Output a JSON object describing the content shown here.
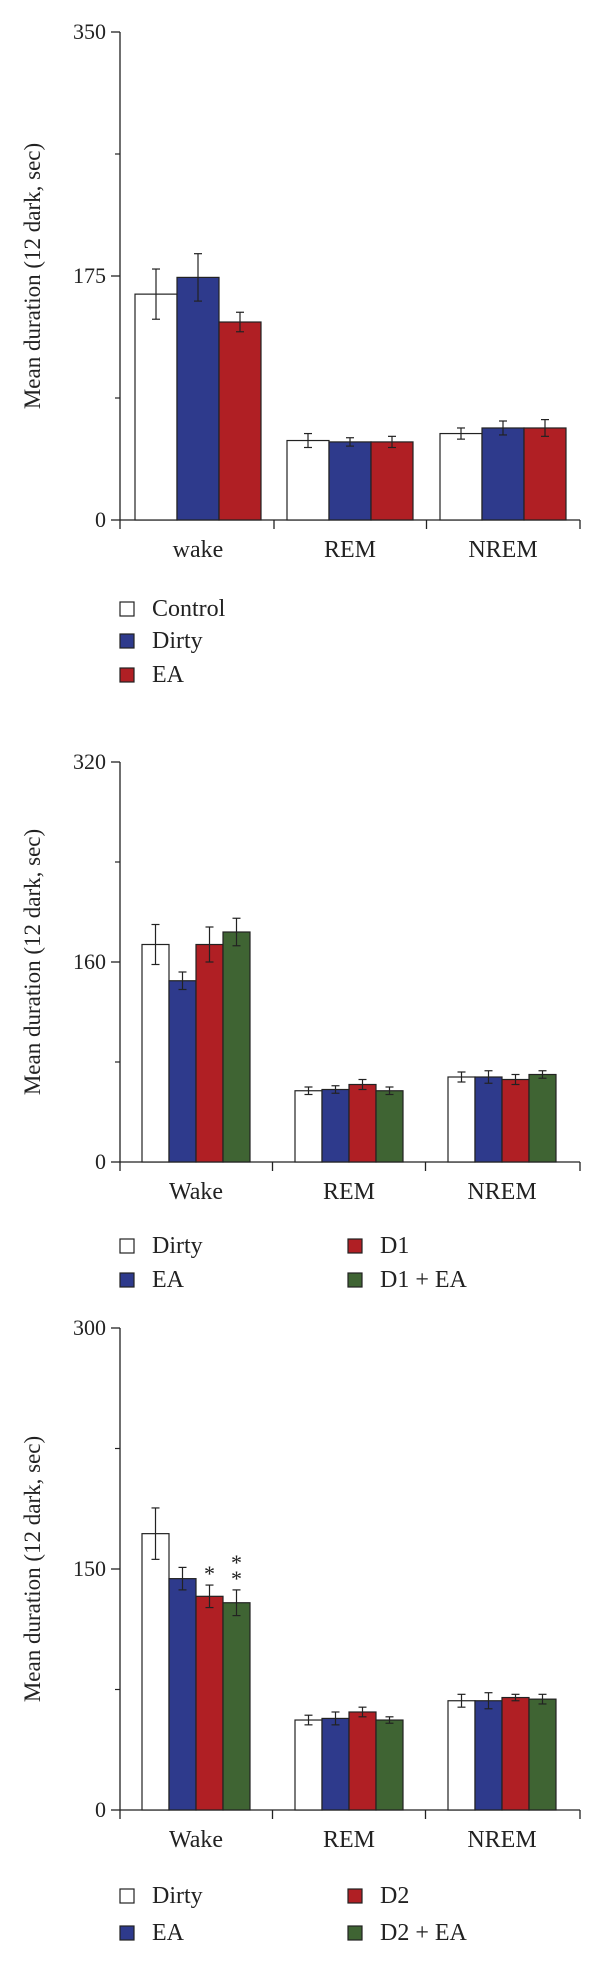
{
  "chart_data": [
    {
      "type": "bar",
      "title": "",
      "ylabel": "Mean duration (12 dark, sec)",
      "xlabel": "",
      "ylim": [
        0,
        350
      ],
      "yticks": [
        "0",
        "175",
        "350"
      ],
      "categories": [
        "wake",
        "REM",
        "NREM"
      ],
      "series": [
        {
          "name": "Control",
          "values": [
            162,
            57,
            62
          ],
          "errors": [
            18,
            5,
            4
          ]
        },
        {
          "name": "Dirty",
          "values": [
            174,
            56,
            66
          ],
          "errors": [
            17,
            3,
            5
          ]
        },
        {
          "name": "EA",
          "values": [
            142,
            56,
            66
          ],
          "errors": [
            7,
            4,
            6
          ]
        }
      ],
      "annotations": [],
      "colors": [
        "#ffffff",
        "#2e3a8c",
        "#b01f24"
      ],
      "legend_position": "bottom-left",
      "grid": false
    },
    {
      "type": "bar",
      "title": "",
      "ylabel": "Mean duration (12 dark, sec)",
      "xlabel": "",
      "ylim": [
        0,
        320
      ],
      "yticks": [
        "0",
        "160",
        "320"
      ],
      "categories": [
        "Wake",
        "REM",
        "NREM"
      ],
      "series": [
        {
          "name": "Dirty",
          "values": [
            174,
            57,
            68
          ],
          "errors": [
            16,
            3,
            4
          ]
        },
        {
          "name": "EA",
          "values": [
            145,
            58,
            68
          ],
          "errors": [
            7,
            3,
            5
          ]
        },
        {
          "name": "D1",
          "values": [
            174,
            62,
            66
          ],
          "errors": [
            14,
            4,
            4
          ]
        },
        {
          "name": "D1 + EA",
          "values": [
            184,
            57,
            70
          ],
          "errors": [
            11,
            3,
            3
          ]
        }
      ],
      "annotations": [],
      "colors": [
        "#ffffff",
        "#2e3a8c",
        "#b01f24",
        "#3f6433"
      ],
      "legend_position": "bottom",
      "grid": false
    },
    {
      "type": "bar",
      "title": "",
      "ylabel": "Mean duration (12 dark, sec)",
      "xlabel": "",
      "ylim": [
        0,
        300
      ],
      "yticks": [
        "0",
        "150",
        "300"
      ],
      "categories": [
        "Wake",
        "REM",
        "NREM"
      ],
      "series": [
        {
          "name": "Dirty",
          "values": [
            172,
            56,
            68
          ],
          "errors": [
            16,
            3,
            4
          ]
        },
        {
          "name": "EA",
          "values": [
            144,
            57,
            68
          ],
          "errors": [
            7,
            4,
            5
          ]
        },
        {
          "name": "D2",
          "values": [
            133,
            61,
            70
          ],
          "errors": [
            7,
            3,
            2
          ]
        },
        {
          "name": "D2 + EA",
          "values": [
            129,
            56,
            69
          ],
          "errors": [
            8,
            2,
            3
          ]
        }
      ],
      "annotations": [
        {
          "category": "Wake",
          "series": "D2",
          "text": "*"
        },
        {
          "category": "Wake",
          "series": "D2 + EA",
          "text": "*"
        },
        {
          "category": "Wake",
          "series": "D2 + EA",
          "text": "*"
        }
      ],
      "colors": [
        "#ffffff",
        "#2e3a8c",
        "#b01f24",
        "#3f6433"
      ],
      "legend_position": "bottom",
      "grid": false
    }
  ]
}
